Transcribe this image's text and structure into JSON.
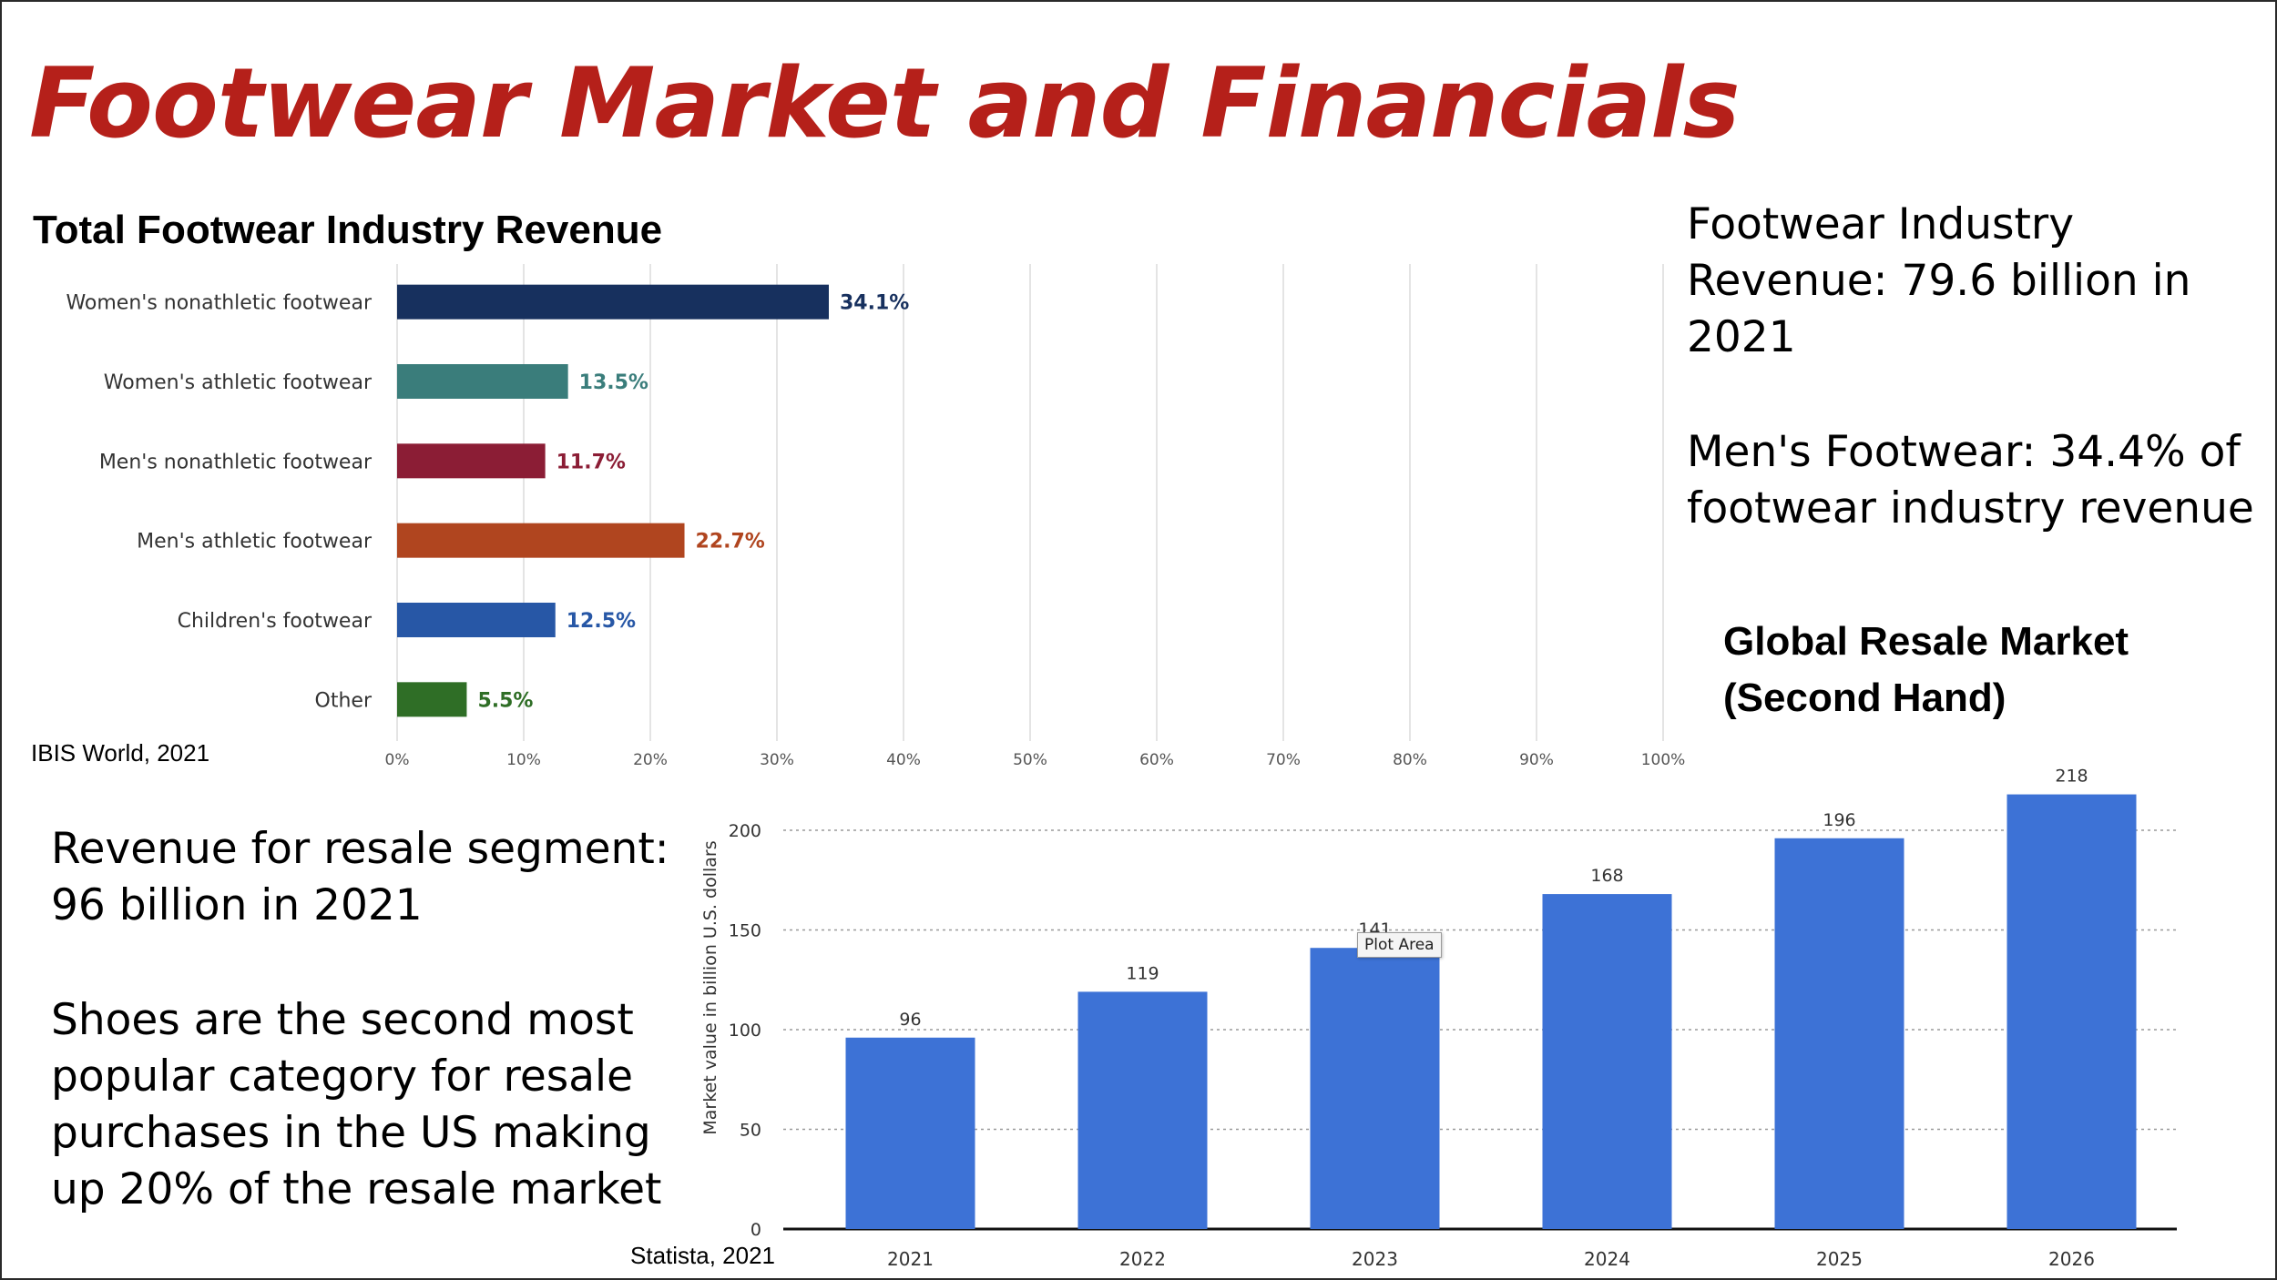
{
  "slide": {
    "title": "Footwear Market and Financials"
  },
  "side_text": {
    "industry_revenue": "Footwear Industry Revenue: 79.6 billion in 2021",
    "mens_share": "Men's Footwear: 34.4% of footwear industry revenue",
    "resale_revenue": "Revenue for resale segment: 96 billion in 2021",
    "shoes_resale": "Shoes are the second most popular category for resale purchases in the US making up 20% of the resale market"
  },
  "sources": {
    "bar_chart": "IBIS World, 2021",
    "column_chart": "Statista, 2021"
  },
  "tooltip": "Plot Area",
  "colors": {
    "title_red": "#b5201a",
    "resale_bar": "#3d72d6"
  },
  "chart_data": [
    {
      "type": "bar",
      "orientation": "horizontal",
      "title": "Total Footwear Industry Revenue",
      "categories": [
        "Women's nonathletic footwear",
        "Women's athletic footwear",
        "Men's nonathletic footwear",
        "Men's athletic footwear",
        "Children's footwear",
        "Other"
      ],
      "values": [
        34.1,
        13.5,
        11.7,
        22.7,
        12.5,
        5.5
      ],
      "data_labels": [
        "34.1%",
        "13.5%",
        "11.7%",
        "22.7%",
        "12.5%",
        "5.5%"
      ],
      "colors": [
        "#17305e",
        "#3a7d7b",
        "#8b1d35",
        "#b0451f",
        "#2757a6",
        "#2f6e26"
      ],
      "xlim": [
        0,
        100
      ],
      "x_ticks": [
        0,
        10,
        20,
        30,
        40,
        50,
        60,
        70,
        80,
        90,
        100
      ],
      "x_tick_labels": [
        "0%",
        "10%",
        "20%",
        "30%",
        "40%",
        "50%",
        "60%",
        "70%",
        "80%",
        "90%",
        "100%"
      ],
      "grid": true
    },
    {
      "type": "bar",
      "title": "Global Resale Market (Second Hand)",
      "categories": [
        "2021",
        "2022",
        "2023",
        "2024",
        "2025",
        "2026"
      ],
      "values": [
        96,
        119,
        141,
        168,
        196,
        218
      ],
      "data_labels": [
        "96",
        "119",
        "141",
        "168",
        "196",
        "218"
      ],
      "ylabel": "Market value in billion U.S. dollars",
      "ylim": [
        0,
        225
      ],
      "y_ticks": [
        0,
        50,
        100,
        150,
        200
      ],
      "y_tick_labels": [
        "0",
        "50",
        "100",
        "150",
        "200"
      ],
      "grid": true
    }
  ]
}
